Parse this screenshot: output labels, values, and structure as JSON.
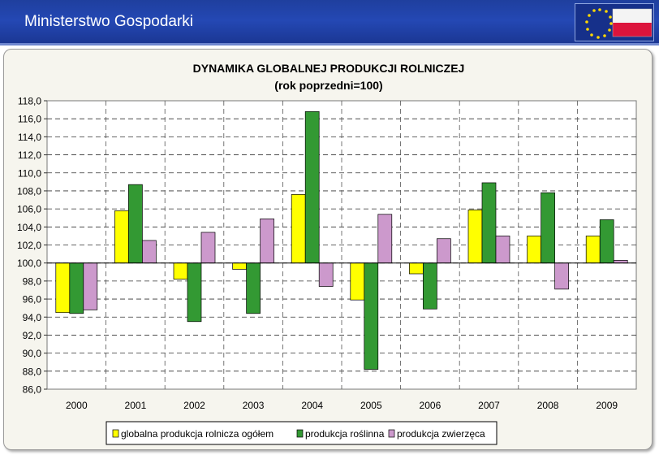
{
  "header": {
    "app_title": "Ministerstwo Gospodarki",
    "background_color": "#2448b4",
    "logo_icon": "eu-poland-flag-icon"
  },
  "chart_data": {
    "type": "bar",
    "title": "DYNAMIKA GLOBALNEJ PRODUKCJI ROLNICZEJ",
    "subtitle": "(rok poprzedni=100)",
    "xlabel": "",
    "ylabel": "",
    "ylim": [
      86.0,
      118.0
    ],
    "baseline": 100.0,
    "yticks": [
      "86,0",
      "88,0",
      "90,0",
      "92,0",
      "94,0",
      "96,0",
      "98,0",
      "100,0",
      "102,0",
      "104,0",
      "106,0",
      "108,0",
      "110,0",
      "112,0",
      "114,0",
      "116,0",
      "118,0"
    ],
    "grid": true,
    "legend_position": "bottom",
    "categories": [
      "2000",
      "2001",
      "2002",
      "2003",
      "2004",
      "2005",
      "2006",
      "2007",
      "2008",
      "2009"
    ],
    "series": [
      {
        "name": "globalna produkcja rolnicza ogółem",
        "color": "#ffff00",
        "values": [
          94.5,
          105.8,
          98.2,
          99.3,
          107.6,
          95.9,
          98.8,
          105.9,
          103.0,
          103.0
        ]
      },
      {
        "name": "produkcja roślinna",
        "color": "#339933",
        "values": [
          94.4,
          108.7,
          93.5,
          94.4,
          116.8,
          88.2,
          94.9,
          108.9,
          107.8,
          104.8
        ]
      },
      {
        "name": "produkcja zwierzęca",
        "color": "#cc99cc",
        "values": [
          94.8,
          102.5,
          103.4,
          104.9,
          97.4,
          105.4,
          102.7,
          103.0,
          97.1,
          100.3
        ]
      }
    ]
  }
}
